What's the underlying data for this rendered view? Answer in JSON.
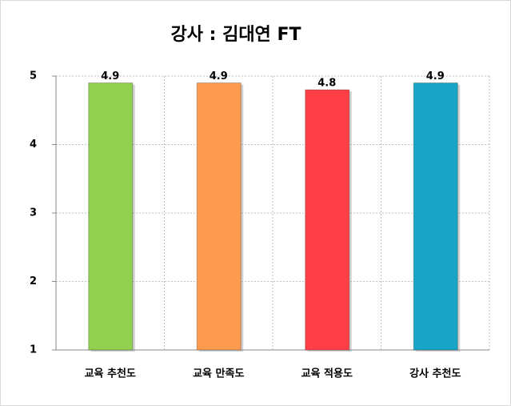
{
  "chart_data": {
    "type": "bar",
    "title": "강사 : 김대연 FT",
    "categories": [
      "교육 추천도",
      "교육 만족도",
      "교육 적용도",
      "강사 추천도"
    ],
    "values": [
      4.9,
      4.9,
      4.8,
      4.9
    ],
    "colors": [
      "#92d050",
      "#ff9b4f",
      "#ff3f46",
      "#17a5c8"
    ],
    "ylim": [
      1,
      5
    ],
    "yticks": [
      1,
      2,
      3,
      4,
      5
    ],
    "grid": true
  }
}
